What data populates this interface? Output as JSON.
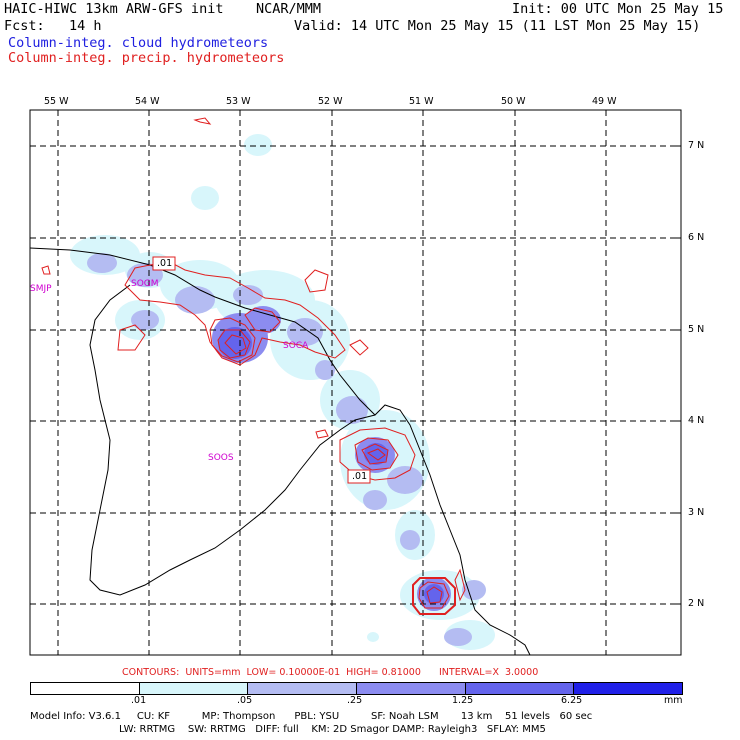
{
  "header": {
    "title": "HAIC-HIWC 13km ARW-GFS init    NCAR/MMM",
    "init": "Init: 00 UTC Mon 25 May 15",
    "fcst": "Fcst:   14 h",
    "valid": "Valid: 14 UTC Mon 25 May 15 (11 LST Mon 25 May 15)",
    "field_cloud": "Column-integ. cloud hydrometeors",
    "field_precip": "Column-integ. precip. hydrometeors"
  },
  "map": {
    "lon_labels": [
      "55 W",
      "54 W",
      "53 W",
      "52 W",
      "51 W",
      "50 W",
      "49 W"
    ],
    "lat_labels": [
      "7 N",
      "6 N",
      "5 N",
      "4 N",
      "3 N",
      "2 N"
    ],
    "stations": [
      "SMJP",
      "SOGM",
      "SOCA",
      "SOOS"
    ],
    "contour_labels": [
      ".01",
      ".01"
    ],
    "colors": {
      "coast": "#000000",
      "grid": "#000000",
      "precip_contour": "#e02020",
      "station": "#d000d0"
    }
  },
  "contour_info": "CONTOURS:  UNITS=mm  LOW= 0.10000E-01  HIGH= 0.81000      INTERVAL=X  3.0000",
  "colorbar": {
    "ticks": [
      ".01",
      ".05",
      ".25",
      "1.25",
      "6.25"
    ],
    "unit": "mm",
    "colors": [
      "#ffffff",
      "#d8f6fb",
      "#b4bcf2",
      "#8c8cf0",
      "#6464ec",
      "#2020e8"
    ]
  },
  "model_info": {
    "line1": "Model Info: V3.6.1     CU: KF          MP: Thompson      PBL: YSU          SF: Noah LSM       13 km    51 levels   60 sec",
    "line2": "                            LW: RRTMG    SW: RRTMG   DIFF: full    KM: 2D Smagor DAMP: Rayleigh3   SFLAY: MM5"
  }
}
